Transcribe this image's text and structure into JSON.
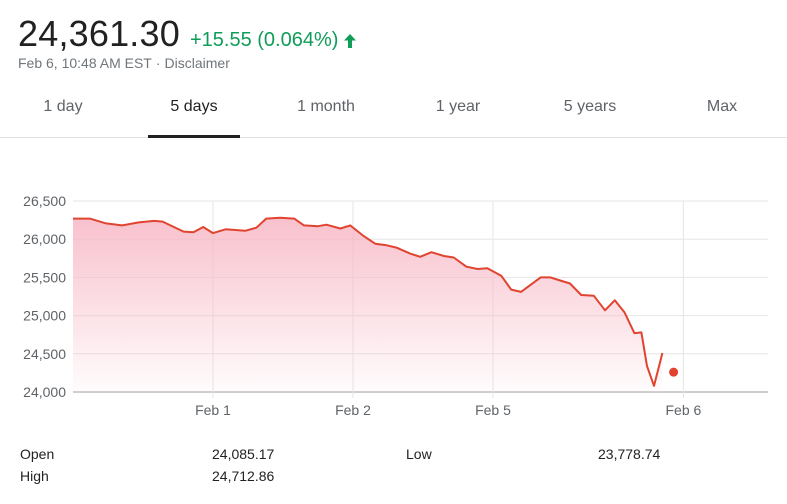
{
  "header": {
    "price": "24,361.30",
    "change": "+15.55 (0.064%)",
    "change_color": "#0f9d58",
    "date": "Feb 6, 10:48 AM EST",
    "separator": "·",
    "disclaimer": "Disclaimer",
    "trend_icon": "arrow-up-icon"
  },
  "tabs": [
    {
      "label": "1 day",
      "active": false
    },
    {
      "label": "5 days",
      "active": true
    },
    {
      "label": "1 month",
      "active": false
    },
    {
      "label": "1 year",
      "active": false
    },
    {
      "label": "5 years",
      "active": false
    },
    {
      "label": "Max",
      "active": false
    }
  ],
  "chart_data": {
    "type": "area",
    "ylim": [
      24000,
      26500
    ],
    "yticks": [
      24000,
      24500,
      25000,
      25500,
      26000,
      26500
    ],
    "ytick_labels": [
      "24,000",
      "24,500",
      "25,000",
      "25,500",
      "26,000",
      "26,500"
    ],
    "xtick_labels": [
      "Feb 1",
      "Feb 2",
      "Feb 5",
      "Feb 6"
    ],
    "x_range": [
      0,
      5
    ],
    "xtick_positions": [
      1,
      2,
      3,
      4.36
    ],
    "grid": true,
    "line_color": "#e0442f",
    "fill_color": "#f7b6c4",
    "series": [
      {
        "x": [
          0,
          0.12,
          0.23,
          0.35,
          0.47,
          0.58,
          0.64,
          0.79,
          0.86,
          0.93,
          1.0,
          1.09,
          1.16,
          1.23,
          1.31,
          1.38,
          1.48,
          1.58,
          1.65,
          1.75,
          1.81,
          1.91,
          1.98,
          2.07,
          2.16,
          2.24,
          2.31,
          2.41,
          2.48,
          2.56,
          2.65,
          2.72,
          2.81,
          2.89,
          2.96,
          3.06,
          3.13,
          3.2,
          3.34,
          3.41,
          3.48,
          3.55,
          3.63,
          3.72,
          3.8,
          3.87,
          3.94,
          4.01,
          4.06,
          4.1,
          4.15,
          4.21
        ],
        "y": [
          26270,
          26270,
          26210,
          26180,
          26220,
          26240,
          26230,
          26100,
          26090,
          26160,
          26080,
          26130,
          26120,
          26110,
          26150,
          26270,
          26280,
          26270,
          26180,
          26170,
          26190,
          26140,
          26180,
          26050,
          25940,
          25920,
          25890,
          25810,
          25770,
          25830,
          25780,
          25760,
          25640,
          25610,
          25620,
          25520,
          25340,
          25310,
          25500,
          25500,
          25460,
          25420,
          25270,
          25260,
          25070,
          25200,
          25040,
          24770,
          24780,
          24340,
          24080,
          24510
        ]
      }
    ],
    "current_point": {
      "x": 4.29,
      "y": 24260
    }
  },
  "stats": {
    "open_label": "Open",
    "open_value": "24,085.17",
    "low_label": "Low",
    "low_value": "23,778.74",
    "high_label": "High",
    "high_value": "24,712.86"
  }
}
